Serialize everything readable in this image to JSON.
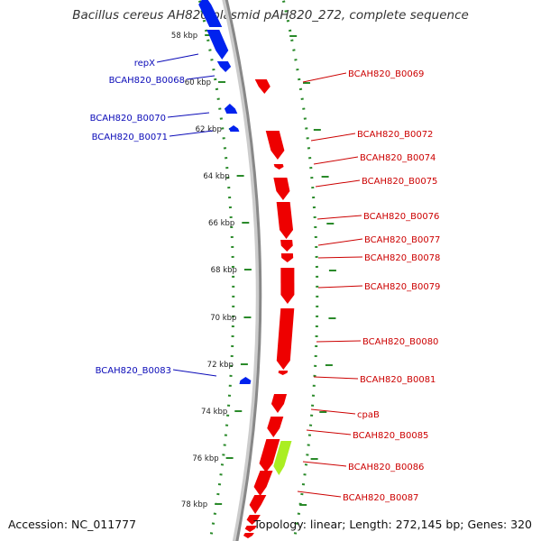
{
  "title": "Bacillus cereus AH820 plasmid pAH820_272, complete sequence",
  "accession_text": "Accession: NC_011777",
  "summary_text": "Topology: linear; Length: 272,145 bp; Genes: 320",
  "colors": {
    "forward": "#ee0000",
    "reverse": "#0022ee",
    "other": "#aaee22",
    "backbone": "#888888",
    "tick": "#2a8a2a",
    "left_label": "#0a0ab8",
    "right_label": "#cc0000"
  },
  "tick_labels": [
    "58 kbp",
    "60 kbp",
    "62 kbp",
    "64 kbp",
    "66 kbp",
    "68 kbp",
    "70 kbp",
    "72 kbp",
    "74 kbp",
    "76 kbp",
    "78 kbp"
  ],
  "left_labels": [
    "repX",
    "BCAH820_B0068",
    "BCAH820_B0070",
    "BCAH820_B0071",
    "BCAH820_B0083"
  ],
  "right_labels": [
    "BCAH820_B0069",
    "BCAH820_B0072",
    "BCAH820_B0074",
    "BCAH820_B0075",
    "BCAH820_B0076",
    "BCAH820_B0077",
    "BCAH820_B0078",
    "BCAH820_B0079",
    "BCAH820_B0080",
    "BCAH820_B0081",
    "cpaB",
    "BCAH820_B0085",
    "BCAH820_B0086",
    "BCAH820_B0087"
  ]
}
